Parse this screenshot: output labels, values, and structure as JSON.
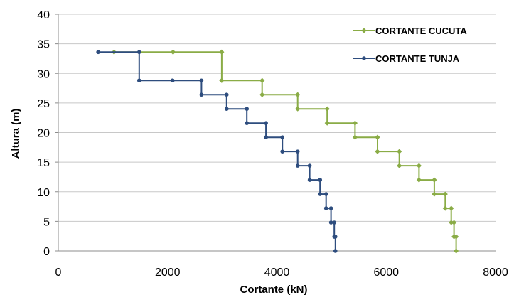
{
  "chart_data": {
    "type": "line",
    "title": "",
    "xlabel": "Cortante (kN)",
    "ylabel": "Altura (m)",
    "xlim": [
      0,
      8000
    ],
    "ylim": [
      0,
      40
    ],
    "xticks": [
      0,
      2000,
      4000,
      6000,
      8000
    ],
    "yticks": [
      0,
      5,
      10,
      15,
      20,
      25,
      30,
      35,
      40
    ],
    "xtick_labels": [
      "0",
      "2000",
      "4000",
      "6000",
      "8000"
    ],
    "ytick_labels": [
      "0",
      "5",
      "10",
      "15",
      "20",
      "25",
      "30",
      "35",
      "40"
    ],
    "grid": "y-major",
    "legend_position": "top-right",
    "series": [
      {
        "name": "CORTANTE CUCUTA",
        "color": "#8aac46",
        "marker": "diamond",
        "x": [
          7280,
          7280,
          7240,
          7240,
          7190,
          7190,
          7080,
          7080,
          6880,
          6880,
          6600,
          6600,
          6240,
          6240,
          5840,
          5840,
          5430,
          5430,
          4920,
          4920,
          4380,
          4380,
          3730,
          3730,
          2990,
          2990,
          2100,
          2100,
          1020
        ],
        "y": [
          0,
          2.4,
          2.4,
          4.8,
          4.8,
          7.2,
          7.2,
          9.6,
          9.6,
          12.0,
          12.0,
          14.4,
          14.4,
          16.8,
          16.8,
          19.2,
          19.2,
          21.6,
          21.6,
          24.0,
          24.0,
          26.4,
          26.4,
          28.8,
          28.8,
          33.6,
          33.6,
          33.6,
          33.6
        ]
      },
      {
        "name": "CORTANTE TUNJA",
        "color": "#2e4d7e",
        "marker": "circle",
        "x": [
          5070,
          5070,
          5050,
          5050,
          4990,
          4990,
          4900,
          4900,
          4790,
          4790,
          4600,
          4600,
          4380,
          4380,
          4100,
          4100,
          3800,
          3800,
          3450,
          3450,
          3080,
          3080,
          2620,
          2620,
          2090,
          2090,
          1480,
          1480,
          730
        ],
        "y": [
          0,
          2.4,
          2.4,
          4.8,
          4.8,
          7.2,
          7.2,
          9.6,
          9.6,
          12.0,
          12.0,
          14.4,
          14.4,
          16.8,
          16.8,
          19.2,
          19.2,
          21.6,
          21.6,
          24.0,
          24.0,
          26.4,
          26.4,
          28.8,
          28.8,
          28.8,
          28.8,
          33.6,
          33.6
        ]
      }
    ]
  }
}
